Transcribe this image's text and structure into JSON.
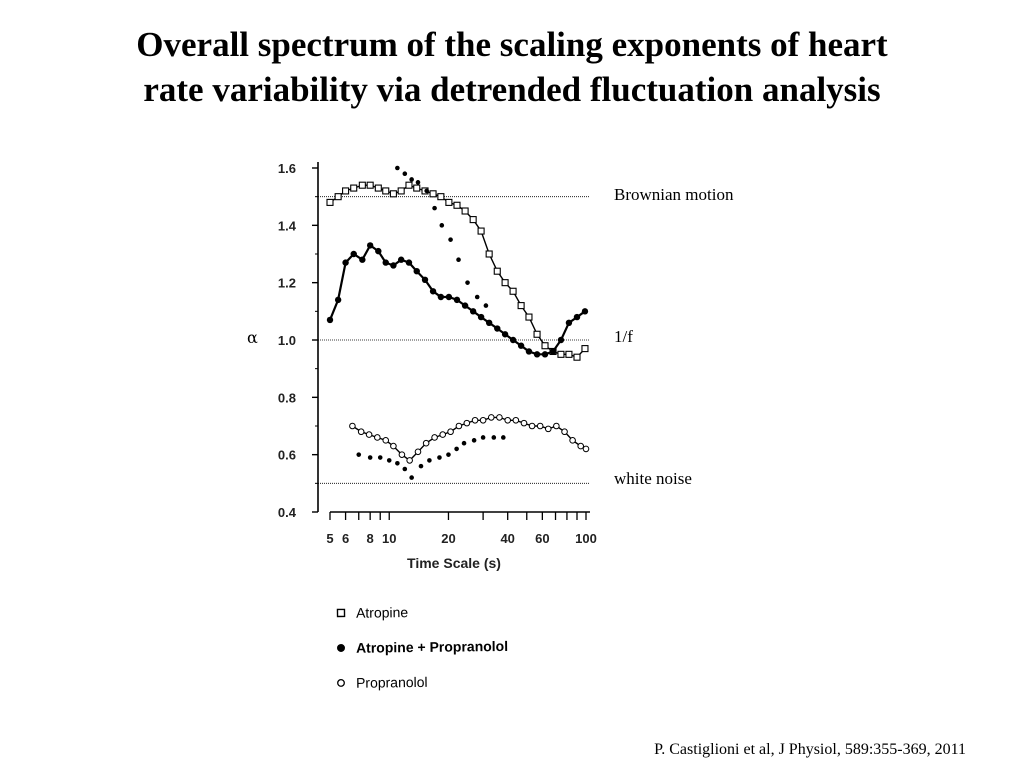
{
  "title_line1": "Overall spectrum of the scaling exponents of heart",
  "title_line2": "rate variability via detrended fluctuation analysis",
  "citation": "P. Castiglioni et al, J Physiol, 589:355-369, 2011",
  "chart_data": {
    "type": "line",
    "xlabel": "Time Scale (s)",
    "ylabel": "α",
    "x_scale": "log",
    "xlim": [
      5,
      100
    ],
    "ylim": [
      0.4,
      1.6
    ],
    "xticks": [
      5,
      6,
      8,
      10,
      20,
      40,
      60,
      100
    ],
    "yticks": [
      "1.6",
      "1.4",
      "1.2",
      "1.0",
      "0.8",
      "0.6",
      "0.4"
    ],
    "reference_lines": [
      {
        "label": "Brownian motion",
        "y": 1.5
      },
      {
        "label": "1/f",
        "y": 1.0
      },
      {
        "label": "white noise",
        "y": 0.5
      }
    ],
    "series": [
      {
        "name": "Atropine",
        "marker": "open-square",
        "connected": true,
        "x": [
          5,
          5.5,
          6,
          6.6,
          7.3,
          8,
          8.8,
          9.6,
          10.5,
          11.5,
          12.6,
          13.8,
          15.2,
          16.7,
          18.3,
          20.1,
          22.1,
          24.3,
          26.7,
          29.3,
          32.2,
          35.4,
          38.8,
          42.6,
          46.8,
          51.3,
          56.4,
          61.9,
          68,
          74.6,
          81.9,
          90,
          98.8
        ],
        "y": [
          1.48,
          1.5,
          1.52,
          1.53,
          1.54,
          1.54,
          1.53,
          1.52,
          1.51,
          1.52,
          1.54,
          1.53,
          1.52,
          1.51,
          1.5,
          1.48,
          1.47,
          1.45,
          1.42,
          1.38,
          1.3,
          1.24,
          1.2,
          1.17,
          1.12,
          1.08,
          1.02,
          0.98,
          0.96,
          0.95,
          0.95,
          0.94,
          0.97
        ]
      },
      {
        "name": "Atropine + Propranolol",
        "marker": "filled-circle",
        "connected": true,
        "x": [
          5,
          5.5,
          6,
          6.6,
          7.3,
          8,
          8.8,
          9.6,
          10.5,
          11.5,
          12.6,
          13.8,
          15.2,
          16.7,
          18.3,
          20.1,
          22.1,
          24.3,
          26.7,
          29.3,
          32.2,
          35.4,
          38.8,
          42.6,
          46.8,
          51.3,
          56.4,
          61.9,
          68,
          74.6,
          81.9,
          90,
          98.8
        ],
        "y": [
          1.07,
          1.14,
          1.27,
          1.3,
          1.28,
          1.33,
          1.31,
          1.27,
          1.26,
          1.28,
          1.27,
          1.24,
          1.21,
          1.17,
          1.15,
          1.15,
          1.14,
          1.12,
          1.1,
          1.08,
          1.06,
          1.04,
          1.02,
          1.0,
          0.98,
          0.96,
          0.95,
          0.95,
          0.96,
          1.0,
          1.06,
          1.08,
          1.1
        ]
      },
      {
        "name": "Atropine + Propranolol (upper dotted)",
        "marker": "filled-dot",
        "connected": false,
        "x": [
          11,
          12,
          13,
          14,
          15.5,
          17,
          18.5,
          20.5,
          22.5,
          25,
          28,
          31
        ],
        "y": [
          1.6,
          1.58,
          1.56,
          1.55,
          1.52,
          1.46,
          1.4,
          1.35,
          1.28,
          1.2,
          1.15,
          1.12
        ]
      },
      {
        "name": "Propranolol",
        "marker": "open-circle",
        "connected": true,
        "x": [
          6.5,
          7.2,
          7.9,
          8.7,
          9.6,
          10.5,
          11.6,
          12.7,
          14,
          15.4,
          17,
          18.7,
          20.5,
          22.6,
          24.8,
          27.3,
          30,
          33,
          36.3,
          40,
          44,
          48.4,
          53.2,
          58.5,
          64.3,
          70.7,
          77.8,
          85.5,
          94,
          100
        ],
        "y": [
          0.7,
          0.68,
          0.67,
          0.66,
          0.65,
          0.63,
          0.6,
          0.58,
          0.61,
          0.64,
          0.66,
          0.67,
          0.68,
          0.7,
          0.71,
          0.72,
          0.72,
          0.73,
          0.73,
          0.72,
          0.72,
          0.71,
          0.7,
          0.7,
          0.69,
          0.7,
          0.68,
          0.65,
          0.63,
          0.62
        ]
      },
      {
        "name": "Propranolol (dotted)",
        "marker": "filled-dot",
        "connected": false,
        "x": [
          7,
          8,
          9,
          10,
          11,
          12,
          13,
          14.5,
          16,
          18,
          20,
          22,
          24,
          27,
          30,
          34,
          38
        ],
        "y": [
          0.6,
          0.59,
          0.59,
          0.58,
          0.57,
          0.55,
          0.52,
          0.56,
          0.58,
          0.59,
          0.6,
          0.62,
          0.64,
          0.65,
          0.66,
          0.66,
          0.66
        ]
      }
    ],
    "legend": [
      {
        "label": "Atropine",
        "marker": "open-square",
        "bold": false
      },
      {
        "label": "Atropine + Propranolol",
        "marker": "filled-circle",
        "bold": true
      },
      {
        "label": "Propranolol",
        "marker": "open-circle",
        "bold": false
      }
    ]
  }
}
